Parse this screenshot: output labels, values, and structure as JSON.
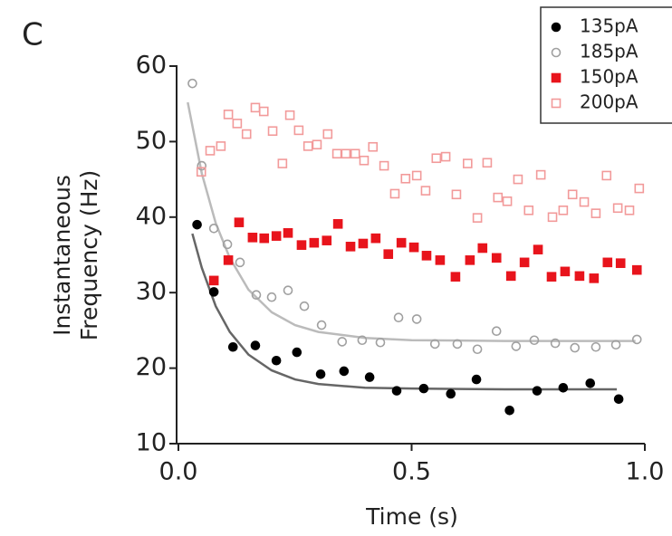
{
  "chart_data": {
    "type": "scatter",
    "panel_label": "C",
    "xlabel": "Time (s)",
    "ylabel": [
      "Instantaneous",
      "Frequency (Hz)"
    ],
    "xlim": [
      0,
      1
    ],
    "ylim": [
      10,
      60
    ],
    "xticks": [
      {
        "value": 0,
        "label": "0.0"
      },
      0.5,
      {
        "value": 1,
        "label": "1.0"
      }
    ],
    "yticks": [
      10,
      20,
      30,
      40,
      50,
      60
    ],
    "legend": "upper right",
    "series": [
      {
        "name": "135pA",
        "color": "#000000",
        "marker": "circle",
        "filled": true,
        "x": [
          0.04,
          0.076,
          0.117,
          0.165,
          0.21,
          0.254,
          0.305,
          0.355,
          0.41,
          0.468,
          0.526,
          0.584,
          0.639,
          0.71,
          0.769,
          0.825,
          0.883,
          0.944
        ],
        "values": [
          39.0,
          30.1,
          22.8,
          23.0,
          21.0,
          22.1,
          19.2,
          19.6,
          18.8,
          17.0,
          17.3,
          16.6,
          18.5,
          14.4,
          17.0,
          17.4,
          18.0,
          15.9
        ]
      },
      {
        "name": "185pA",
        "color": "#a0a0a0",
        "marker": "circle",
        "filled": false,
        "x": [
          0.03,
          0.05,
          0.076,
          0.105,
          0.132,
          0.167,
          0.2,
          0.235,
          0.27,
          0.307,
          0.351,
          0.394,
          0.433,
          0.472,
          0.511,
          0.55,
          0.598,
          0.641,
          0.682,
          0.724,
          0.763,
          0.808,
          0.85,
          0.895,
          0.938,
          0.983
        ],
        "values": [
          57.7,
          46.8,
          38.5,
          36.4,
          34.0,
          29.7,
          29.4,
          30.3,
          28.2,
          25.7,
          23.5,
          23.7,
          23.4,
          26.7,
          26.5,
          23.2,
          23.2,
          22.5,
          24.9,
          22.9,
          23.7,
          23.3,
          22.7,
          22.8,
          23.1,
          23.8
        ]
      },
      {
        "name": "150pA",
        "color": "#e8141c",
        "marker": "square",
        "filled": true,
        "x": [
          0.076,
          0.107,
          0.13,
          0.159,
          0.184,
          0.21,
          0.235,
          0.264,
          0.291,
          0.318,
          0.342,
          0.369,
          0.396,
          0.423,
          0.45,
          0.478,
          0.505,
          0.532,
          0.561,
          0.594,
          0.625,
          0.652,
          0.682,
          0.713,
          0.742,
          0.771,
          0.8,
          0.829,
          0.86,
          0.891,
          0.92,
          0.948,
          0.983
        ],
        "values": [
          31.6,
          34.3,
          39.3,
          37.3,
          37.2,
          37.5,
          37.9,
          36.3,
          36.6,
          36.9,
          39.1,
          36.1,
          36.5,
          37.2,
          35.1,
          36.6,
          36.0,
          34.9,
          34.3,
          32.1,
          34.3,
          35.9,
          34.6,
          32.2,
          34.0,
          35.7,
          32.1,
          32.8,
          32.2,
          31.9,
          34.0,
          33.9,
          33.0
        ]
      },
      {
        "name": "200pA",
        "color": "#f29a9a",
        "marker": "square",
        "filled": false,
        "x": [
          0.049,
          0.068,
          0.091,
          0.107,
          0.126,
          0.146,
          0.165,
          0.183,
          0.202,
          0.223,
          0.239,
          0.258,
          0.278,
          0.297,
          0.32,
          0.34,
          0.359,
          0.379,
          0.398,
          0.417,
          0.441,
          0.464,
          0.487,
          0.511,
          0.53,
          0.553,
          0.573,
          0.596,
          0.62,
          0.641,
          0.662,
          0.685,
          0.705,
          0.728,
          0.751,
          0.777,
          0.802,
          0.825,
          0.845,
          0.87,
          0.895,
          0.918,
          0.942,
          0.967,
          0.988
        ],
        "values": [
          46.0,
          48.8,
          49.4,
          53.6,
          52.4,
          51.0,
          54.5,
          54.0,
          51.4,
          47.1,
          53.5,
          51.5,
          49.4,
          49.6,
          51.0,
          48.4,
          48.4,
          48.4,
          47.5,
          49.3,
          46.8,
          43.1,
          45.1,
          45.5,
          43.5,
          47.8,
          48.0,
          43.0,
          47.1,
          39.9,
          47.2,
          42.6,
          42.1,
          45.0,
          40.9,
          45.6,
          40.0,
          40.9,
          43.0,
          42.0,
          40.5,
          45.5,
          41.2,
          40.9,
          43.8
        ]
      }
    ],
    "fits": [
      {
        "color": "#666666",
        "x": [
          0.03,
          0.05,
          0.08,
          0.11,
          0.15,
          0.2,
          0.25,
          0.3,
          0.4,
          0.5,
          0.7,
          0.94
        ],
        "values": [
          37.8,
          33.3,
          28.2,
          24.8,
          21.8,
          19.7,
          18.5,
          17.9,
          17.4,
          17.3,
          17.2,
          17.2
        ]
      },
      {
        "color": "#bbbbbb",
        "x": [
          0.02,
          0.05,
          0.08,
          0.11,
          0.15,
          0.2,
          0.25,
          0.3,
          0.4,
          0.5,
          0.7,
          0.98
        ],
        "values": [
          55.2,
          45.8,
          39.2,
          34.6,
          30.4,
          27.4,
          25.7,
          24.8,
          24.0,
          23.7,
          23.6,
          23.6
        ]
      }
    ]
  }
}
